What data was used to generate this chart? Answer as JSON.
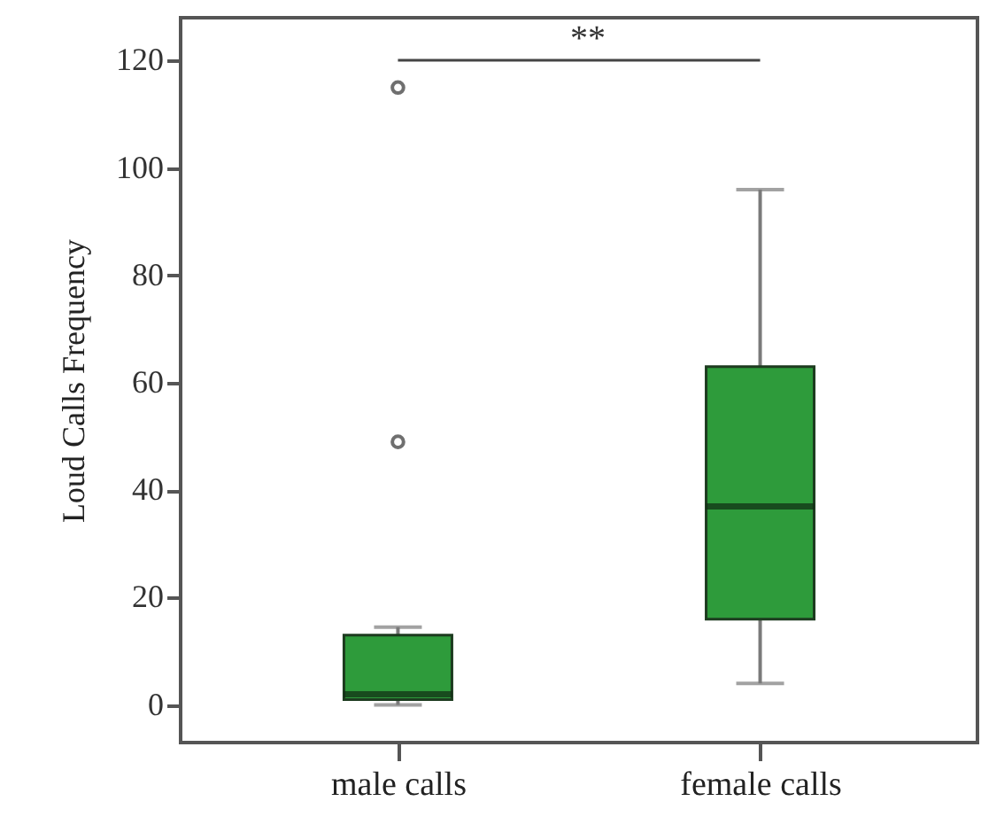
{
  "chart_data": {
    "type": "box",
    "ylabel": "Loud Calls Frequency",
    "categories": [
      "male calls",
      "female calls"
    ],
    "boxes": [
      {
        "low": 0,
        "q1": 1,
        "median": 2,
        "q3": 13,
        "high": 14.5,
        "outliers": [
          49,
          115
        ]
      },
      {
        "low": 4,
        "q1": 16,
        "median": 37,
        "q3": 63,
        "high": 96
      }
    ],
    "color": "#2e9b3b",
    "ylim": [
      -7,
      128
    ],
    "yticks": [
      0,
      20,
      40,
      60,
      80,
      100,
      120
    ],
    "grid": false,
    "annotations": [
      "**"
    ]
  }
}
